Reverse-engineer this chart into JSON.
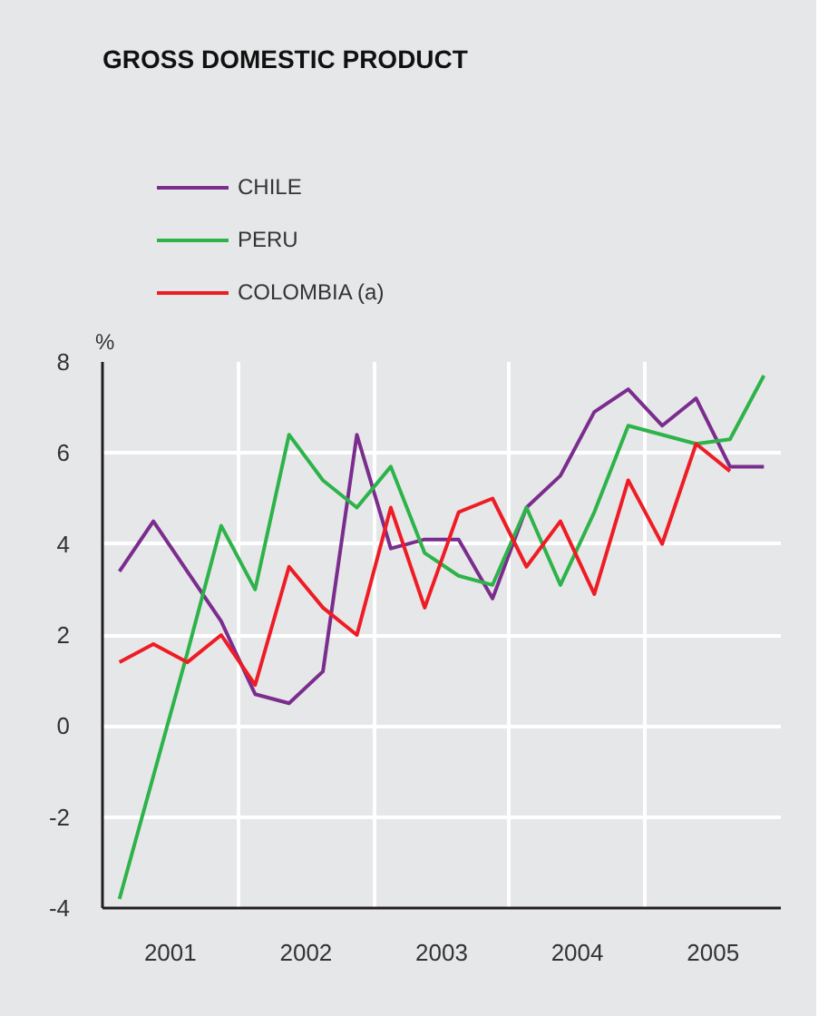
{
  "chart_data": {
    "type": "line",
    "title": "GROSS DOMESTIC PRODUCT",
    "ylabel": "%",
    "x": [
      2001.125,
      2001.375,
      2001.625,
      2001.875,
      2002.125,
      2002.375,
      2002.625,
      2002.875,
      2003.125,
      2003.375,
      2003.625,
      2003.875,
      2004.125,
      2004.375,
      2004.625,
      2004.875,
      2005.125,
      2005.375,
      2005.625,
      2005.875
    ],
    "series": [
      {
        "name": "CHILE",
        "color": "#7b2d8e",
        "values": [
          3.4,
          4.5,
          3.4,
          2.3,
          0.7,
          0.5,
          1.2,
          6.4,
          3.9,
          4.1,
          4.1,
          2.8,
          4.8,
          5.5,
          6.9,
          7.4,
          6.6,
          7.2,
          5.7,
          5.7
        ]
      },
      {
        "name": "PERU",
        "color": "#2db34a",
        "values": [
          -3.8,
          -1.1,
          1.6,
          4.4,
          3.0,
          6.4,
          5.4,
          4.8,
          5.7,
          3.8,
          3.3,
          3.1,
          4.8,
          3.1,
          4.7,
          6.6,
          6.4,
          6.2,
          6.3,
          7.7
        ]
      },
      {
        "name": "COLOMBIA (a)",
        "color": "#ee1c25",
        "x": [
          2001.125,
          2001.375,
          2001.625,
          2001.875,
          2002.125,
          2002.375,
          2002.625,
          2002.875,
          2003.125,
          2003.375,
          2003.625,
          2003.875,
          2004.125,
          2004.375,
          2004.625,
          2004.875,
          2005.125,
          2005.375,
          2005.625
        ],
        "values": [
          1.4,
          1.8,
          1.4,
          2.0,
          0.9,
          3.5,
          2.6,
          2.0,
          4.8,
          2.6,
          4.7,
          5.0,
          3.5,
          4.5,
          2.9,
          5.4,
          4.0,
          6.2,
          5.6
        ]
      }
    ],
    "xlim": [
      2001,
      2006
    ],
    "xticks": [
      {
        "value": 2001.5,
        "label": "2001"
      },
      {
        "value": 2002,
        "label": null
      },
      {
        "value": 2002.5,
        "label": "2002"
      },
      {
        "value": 2003,
        "label": null
      },
      {
        "value": 2003.5,
        "label": "2003"
      },
      {
        "value": 2004,
        "label": null
      },
      {
        "value": 2004.5,
        "label": "2004"
      },
      {
        "value": 2005,
        "label": null
      },
      {
        "value": 2005.5,
        "label": "2005"
      }
    ],
    "ylim": [
      -4,
      8
    ],
    "yticks": [
      -4,
      -2,
      0,
      2,
      4,
      6,
      8
    ],
    "grid": true,
    "legend": "top left",
    "marker": "none",
    "line_style": "solid"
  }
}
